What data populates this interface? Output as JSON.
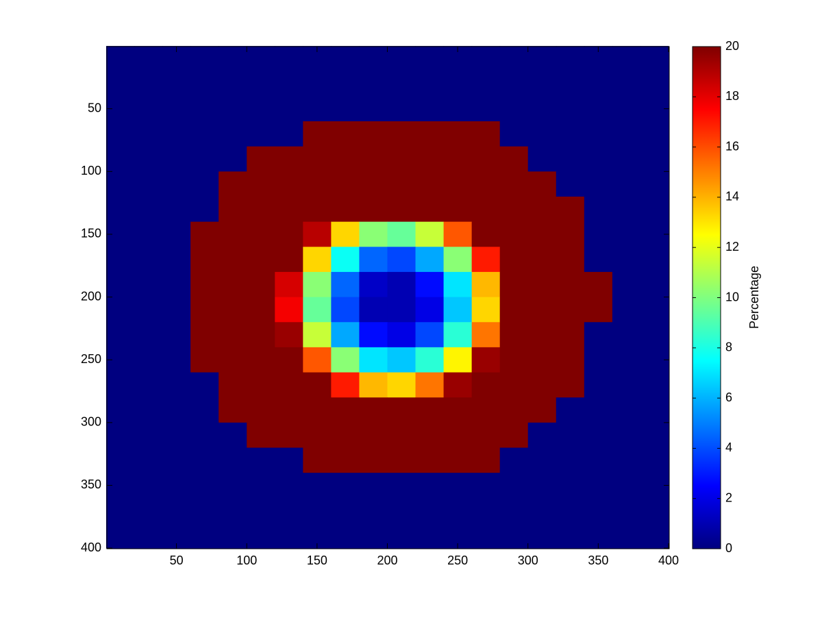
{
  "chart_data": {
    "type": "heatmap",
    "x": [
      10,
      30,
      50,
      70,
      90,
      110,
      130,
      150,
      170,
      190,
      210,
      230,
      250,
      270,
      290,
      310,
      330,
      350,
      370,
      390
    ],
    "y": [
      10,
      30,
      50,
      70,
      90,
      110,
      130,
      150,
      170,
      190,
      210,
      230,
      250,
      270,
      290,
      310,
      330,
      350,
      370,
      390
    ],
    "z": [
      [
        0,
        0,
        0,
        0,
        0,
        0,
        0,
        0,
        0,
        0,
        0,
        0,
        0,
        0,
        0,
        0,
        0,
        0,
        0,
        0
      ],
      [
        0,
        0,
        0,
        0,
        0,
        0,
        0,
        0,
        0,
        0,
        0,
        0,
        0,
        0,
        0,
        0,
        0,
        0,
        0,
        0
      ],
      [
        0,
        0,
        0,
        0,
        0,
        0,
        0,
        0,
        0,
        0,
        0,
        0,
        0,
        0,
        0,
        0,
        0,
        0,
        0,
        0
      ],
      [
        0,
        0,
        0,
        0,
        0,
        0,
        0,
        20,
        20,
        20,
        20,
        20,
        20,
        20,
        0,
        0,
        0,
        0,
        0,
        0
      ],
      [
        0,
        0,
        0,
        0,
        0,
        20,
        20,
        20,
        20,
        20,
        20,
        20,
        20,
        20,
        20,
        0,
        0,
        0,
        0,
        0
      ],
      [
        0,
        0,
        0,
        0,
        20,
        20,
        20,
        20,
        20,
        20,
        20,
        20,
        20,
        20,
        20,
        20,
        0,
        0,
        0,
        0
      ],
      [
        0,
        0,
        0,
        0,
        20,
        20,
        20,
        20,
        20,
        20,
        20,
        20,
        20,
        20,
        20,
        20,
        20,
        0,
        0,
        0
      ],
      [
        0,
        0,
        0,
        20,
        20,
        20,
        20,
        18.9,
        13.3,
        10.2,
        9.5,
        11.4,
        15.8,
        20,
        20,
        20,
        20,
        0,
        0,
        0
      ],
      [
        0,
        0,
        0,
        20,
        20,
        20,
        20,
        13.3,
        7.7,
        4.5,
        3.9,
        5.8,
        10.2,
        17,
        20,
        20,
        20,
        0,
        0,
        0
      ],
      [
        0,
        0,
        0,
        20,
        20,
        20,
        18.3,
        10.2,
        4.5,
        1.4,
        1,
        2.7,
        7,
        13.9,
        20,
        20,
        20,
        20,
        0,
        0
      ],
      [
        0,
        0,
        0,
        20,
        20,
        20,
        17.7,
        9.5,
        3.9,
        1,
        1,
        2,
        6.4,
        13.3,
        20,
        20,
        20,
        20,
        0,
        0
      ],
      [
        0,
        0,
        0,
        20,
        20,
        20,
        19.5,
        11.4,
        5.8,
        2.7,
        2,
        3.9,
        8.3,
        15.2,
        20,
        20,
        20,
        0,
        0,
        0
      ],
      [
        0,
        0,
        0,
        20,
        20,
        20,
        20,
        15.8,
        10.2,
        7,
        6.4,
        8.3,
        12.7,
        19.5,
        20,
        20,
        20,
        0,
        0,
        0
      ],
      [
        0,
        0,
        0,
        0,
        20,
        20,
        20,
        20,
        17,
        13.9,
        13.3,
        15.2,
        19.5,
        20,
        20,
        20,
        20,
        0,
        0,
        0
      ],
      [
        0,
        0,
        0,
        0,
        20,
        20,
        20,
        20,
        20,
        20,
        20,
        20,
        20,
        20,
        20,
        20,
        0,
        0,
        0,
        0
      ],
      [
        0,
        0,
        0,
        0,
        0,
        20,
        20,
        20,
        20,
        20,
        20,
        20,
        20,
        20,
        20,
        0,
        0,
        0,
        0,
        0
      ],
      [
        0,
        0,
        0,
        0,
        0,
        0,
        0,
        20,
        20,
        20,
        20,
        20,
        20,
        20,
        0,
        0,
        0,
        0,
        0,
        0
      ],
      [
        0,
        0,
        0,
        0,
        0,
        0,
        0,
        0,
        0,
        0,
        0,
        0,
        0,
        0,
        0,
        0,
        0,
        0,
        0,
        0
      ],
      [
        0,
        0,
        0,
        0,
        0,
        0,
        0,
        0,
        0,
        0,
        0,
        0,
        0,
        0,
        0,
        0,
        0,
        0,
        0,
        0
      ],
      [
        0,
        0,
        0,
        0,
        0,
        0,
        0,
        0,
        0,
        0,
        0,
        0,
        0,
        0,
        0,
        0,
        0,
        0,
        0,
        0
      ]
    ],
    "xlim": [
      0.5,
      400.5
    ],
    "ylim": [
      0.5,
      400.5
    ],
    "y_reversed": true,
    "xticks": [
      50,
      100,
      150,
      200,
      250,
      300,
      350,
      400
    ],
    "yticks": [
      50,
      100,
      150,
      200,
      250,
      300,
      350,
      400
    ],
    "colormap": "jet",
    "clim": [
      0,
      20
    ],
    "colorbar_ticks": [
      0,
      2,
      4,
      6,
      8,
      10,
      12,
      14,
      16,
      18,
      20
    ],
    "colorbar_label": "Percentage"
  }
}
